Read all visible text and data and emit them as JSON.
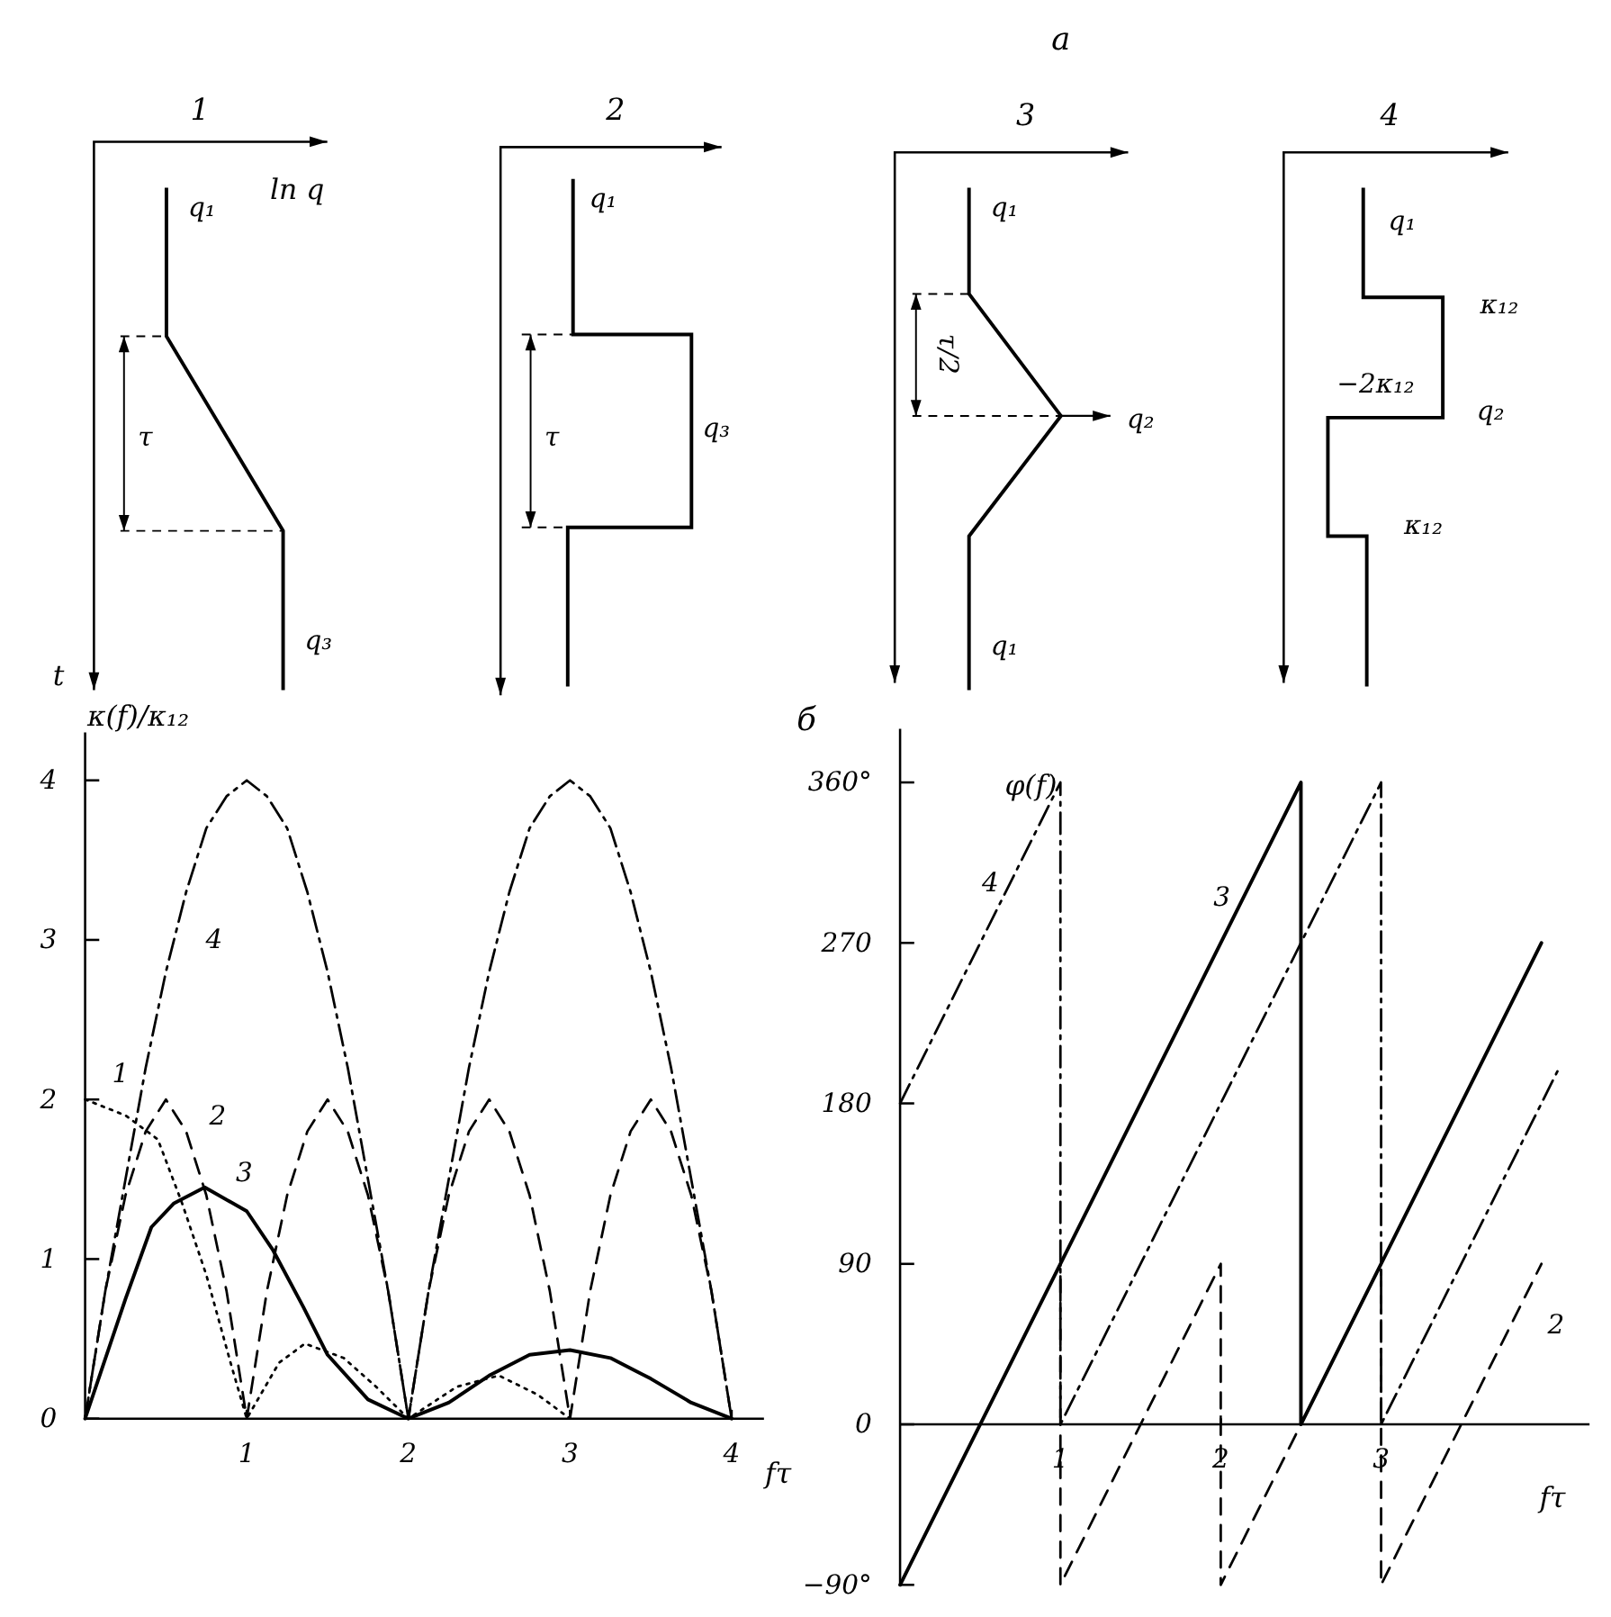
{
  "chart_data": [
    {
      "type": "other",
      "title": "1",
      "xlabel": "ln q",
      "ylabel": "t",
      "annotations": [
        "q₁",
        "τ",
        "q₃"
      ]
    },
    {
      "type": "other",
      "title": "2",
      "annotations": [
        "q₁",
        "τ",
        "q₃",
        "а"
      ]
    },
    {
      "type": "other",
      "title": "3",
      "annotations": [
        "q₁",
        "τ/2",
        "q₂",
        "q₁"
      ]
    },
    {
      "type": "other",
      "title": "4",
      "annotations": [
        "q₁",
        "κ₁₂",
        "−2κ₁₂",
        "q₂",
        "κ₁₂"
      ]
    },
    {
      "type": "line",
      "xlabel": "fτ",
      "ylabel": "κ(f)/κ₁₂",
      "xlim": [
        0,
        4.2
      ],
      "ylim": [
        0,
        4.3
      ],
      "xticks": [
        1,
        2,
        3,
        4
      ],
      "yticks": [
        0,
        1,
        2,
        3,
        4
      ],
      "series": [
        {
          "name": "1",
          "color": "#000000",
          "line_style": "dotted",
          "x": [
            0,
            0.25,
            0.45,
            0.6,
            0.75,
            0.9,
            1,
            1.2,
            1.36,
            1.6,
            1.8,
            2,
            2.3,
            2.56,
            2.8,
            3
          ],
          "values": [
            2,
            1.9,
            1.75,
            1.35,
            0.9,
            0.35,
            0,
            0.35,
            0.47,
            0.38,
            0.2,
            0,
            0.2,
            0.27,
            0.15,
            0
          ]
        },
        {
          "name": "2",
          "color": "#000000",
          "line_style": "dashed",
          "x": [
            0,
            0.125,
            0.25,
            0.375,
            0.5,
            0.625,
            0.75,
            0.875,
            1,
            1.125,
            1.25,
            1.375,
            1.5,
            1.625,
            1.75,
            1.875,
            2,
            2.125,
            2.25,
            2.375,
            2.5,
            2.625,
            2.75,
            2.875,
            3,
            3.125,
            3.25,
            3.375,
            3.5,
            3.625,
            3.75,
            3.875,
            4
          ],
          "values": [
            0,
            0.8,
            1.4,
            1.8,
            2,
            1.8,
            1.4,
            0.8,
            0,
            0.8,
            1.4,
            1.8,
            2,
            1.8,
            1.4,
            0.8,
            0,
            0.8,
            1.4,
            1.8,
            2,
            1.8,
            1.4,
            0.8,
            0,
            0.8,
            1.4,
            1.8,
            2,
            1.8,
            1.4,
            0.8,
            0
          ]
        },
        {
          "name": "3",
          "color": "#000000",
          "line_style": "solid",
          "x": [
            0,
            0.25,
            0.41,
            0.55,
            0.74,
            1,
            1.16,
            1.35,
            1.5,
            1.75,
            2,
            2.25,
            2.5,
            2.75,
            3,
            3.25,
            3.5,
            3.75,
            4
          ],
          "values": [
            0,
            0.75,
            1.2,
            1.35,
            1.45,
            1.3,
            1.06,
            0.7,
            0.4,
            0.12,
            0,
            0.1,
            0.27,
            0.4,
            0.43,
            0.38,
            0.25,
            0.1,
            0
          ]
        },
        {
          "name": "4",
          "color": "#000000",
          "line_style": "dashdot",
          "x": [
            0,
            0.125,
            0.25,
            0.375,
            0.5,
            0.625,
            0.75,
            0.875,
            1,
            1.125,
            1.25,
            1.375,
            1.5,
            1.625,
            1.75,
            1.875,
            2,
            2.125,
            2.25,
            2.375,
            2.5,
            2.625,
            2.75,
            2.875,
            3,
            3.125,
            3.25,
            3.375,
            3.5,
            3.625,
            3.75,
            3.875,
            4
          ],
          "values": [
            0,
            0.8,
            1.5,
            2.2,
            2.8,
            3.3,
            3.7,
            3.9,
            4,
            3.9,
            3.7,
            3.3,
            2.8,
            2.2,
            1.5,
            0.8,
            0,
            0.8,
            1.5,
            2.2,
            2.8,
            3.3,
            3.7,
            3.9,
            4,
            3.9,
            3.7,
            3.3,
            2.8,
            2.2,
            1.5,
            0.8,
            0
          ]
        }
      ]
    },
    {
      "type": "line",
      "xlabel": "fτ",
      "ylabel": "φ(f)",
      "xlim": [
        0,
        4.3
      ],
      "ylim": [
        -90,
        390
      ],
      "xticks": [
        1,
        2,
        3
      ],
      "yticks": [
        {
          "value": -90,
          "label": "−90°"
        },
        0,
        90,
        180,
        270,
        {
          "value": 360,
          "label": "360°"
        }
      ],
      "annotations": [
        "б"
      ],
      "series": [
        {
          "name": "2",
          "color": "#000000",
          "line_style": "dashed",
          "x": [
            0,
            1,
            1,
            2,
            2,
            3,
            3,
            4
          ],
          "values": [
            -90,
            90,
            -90,
            90,
            -90,
            90,
            -90,
            90
          ]
        },
        {
          "name": "3",
          "color": "#000000",
          "line_style": "solid",
          "x": [
            0,
            2.5,
            2.5,
            4
          ],
          "values": [
            -90,
            360,
            0,
            270
          ]
        },
        {
          "name": "4",
          "color": "#000000",
          "line_style": "dashdot",
          "x": [
            0,
            1,
            1,
            3,
            3,
            4.1
          ],
          "values": [
            180,
            360,
            0,
            360,
            0,
            198
          ]
        }
      ]
    }
  ]
}
